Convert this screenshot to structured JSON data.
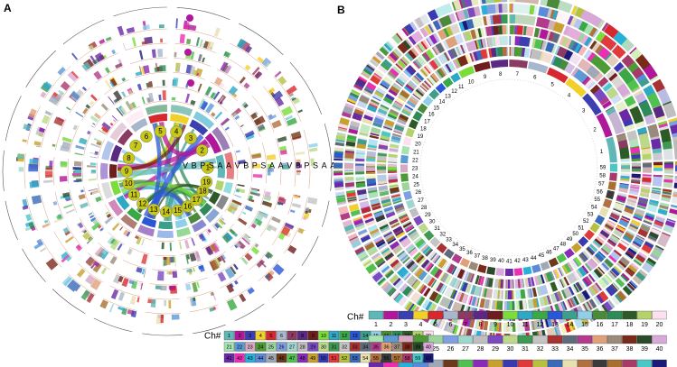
{
  "panel_a": {
    "label": "A",
    "chromosomes": [
      "1",
      "2",
      "3",
      "4",
      "5",
      "6",
      "7",
      "8",
      "9",
      "10",
      "11",
      "12",
      "13",
      "14",
      "15",
      "16",
      "17",
      "18",
      "19"
    ],
    "track_labels": [
      "V",
      "B",
      "P",
      "S",
      "A",
      "A",
      "V",
      "B",
      "P",
      "S",
      "A",
      "A",
      "V",
      "B",
      "P",
      "S",
      "A",
      "A"
    ]
  },
  "panel_b": {
    "label": "B",
    "chromosomes": [
      "1",
      "2",
      "3",
      "4",
      "5",
      "6",
      "7",
      "8",
      "9",
      "10",
      "11",
      "12",
      "13",
      "14",
      "15",
      "16",
      "17",
      "18",
      "19",
      "20",
      "21",
      "22",
      "23",
      "24",
      "25",
      "26",
      "27",
      "28",
      "29",
      "30",
      "31",
      "32",
      "33",
      "34",
      "35",
      "36",
      "37",
      "38",
      "39",
      "40",
      "41",
      "42",
      "43",
      "44",
      "45",
      "46",
      "47",
      "48",
      "49",
      "50",
      "51",
      "52",
      "53",
      "54",
      "55",
      "56",
      "57",
      "58",
      "59"
    ]
  },
  "legend": {
    "title": "Ch#",
    "numbers": [
      "1",
      "2",
      "3",
      "4",
      "5",
      "6",
      "7",
      "8",
      "9",
      "10",
      "11",
      "12",
      "13",
      "14",
      "15",
      "16",
      "17",
      "18",
      "19",
      "20",
      "21",
      "22",
      "23",
      "24",
      "25",
      "26",
      "27",
      "28",
      "29",
      "30",
      "31",
      "32",
      "33",
      "34",
      "35",
      "36",
      "37",
      "38",
      "39",
      "40",
      "41",
      "42",
      "43",
      "44",
      "45",
      "46",
      "47",
      "48",
      "49",
      "50",
      "51",
      "52",
      "53",
      "54",
      "55",
      "56",
      "57",
      "58",
      "59",
      "60"
    ],
    "colors": [
      "#5fb7b8",
      "#b0179a",
      "#3b3fb0",
      "#f2d02a",
      "#d7282f",
      "#a8b7cc",
      "#8b3a62",
      "#5a2a82",
      "#6f1d1d",
      "#7bdc3b",
      "#2fa7c7",
      "#39a845",
      "#2a57d6",
      "#3d9e8c",
      "#8fd0e8",
      "#4b8a3a",
      "#2e8b57",
      "#2d5a27",
      "#b4d46b",
      "#fde0f0",
      "#a6e3b0",
      "#5b9bd5",
      "#d6a8c2",
      "#4e9a35",
      "#9dd39d",
      "#7fa0e0",
      "#9fd7d0",
      "#bfbfbf",
      "#7b49c0",
      "#bcd88a",
      "#3e9a52",
      "#c4c4c4",
      "#a83232",
      "#5f6b7a",
      "#b23b8e",
      "#e0a07a",
      "#9a8a7a",
      "#7a2a1a",
      "#2a4a2a",
      "#d8a8d8",
      "#6a2aa8",
      "#ea2fb3",
      "#2ab0d8",
      "#5a8ad8",
      "#a0a8b8",
      "#6a3a1a",
      "#50c050",
      "#8a2ab8",
      "#c8a030",
      "#3a3ab0",
      "#e03a3a",
      "#b8c040",
      "#3a6ab8",
      "#e8e0b0",
      "#b07040",
      "#3a3a3a",
      "#a87030",
      "#a83a6a",
      "#4ac8c8",
      "#1a1a7a"
    ]
  }
}
